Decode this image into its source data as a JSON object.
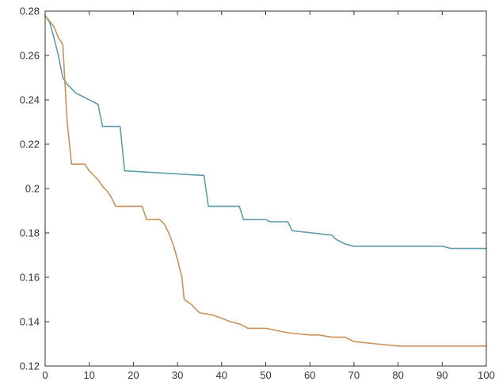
{
  "chart_data": {
    "type": "line",
    "title": "",
    "xlabel": "",
    "ylabel": "",
    "xlim": [
      0,
      100
    ],
    "ylim": [
      0.12,
      0.28
    ],
    "x_ticks": [
      0,
      10,
      20,
      30,
      40,
      50,
      60,
      70,
      80,
      90,
      100
    ],
    "y_ticks": [
      0.12,
      0.14,
      0.16,
      0.18,
      0.2,
      0.22,
      0.24,
      0.26,
      0.28
    ],
    "x_tick_labels": [
      "0",
      "10",
      "20",
      "30",
      "40",
      "50",
      "60",
      "70",
      "80",
      "90",
      "100"
    ],
    "y_tick_labels": [
      "0.12",
      "0.14",
      "0.16",
      "0.18",
      "0.2",
      "0.22",
      "0.24",
      "0.26",
      "0.28"
    ],
    "grid": false,
    "series": [
      {
        "color": "#5f9ea8",
        "x": [
          0,
          1,
          2,
          3,
          4,
          5,
          6,
          7,
          8,
          10,
          12,
          13,
          17,
          18,
          35,
          36,
          37,
          44,
          45,
          50,
          51,
          55,
          56,
          65,
          66,
          68,
          70,
          90,
          92,
          100
        ],
        "y": [
          0.278,
          0.275,
          0.268,
          0.26,
          0.25,
          0.247,
          0.245,
          0.243,
          0.242,
          0.24,
          0.238,
          0.228,
          0.228,
          0.208,
          0.206,
          0.206,
          0.192,
          0.192,
          0.186,
          0.186,
          0.185,
          0.185,
          0.181,
          0.179,
          0.177,
          0.175,
          0.174,
          0.174,
          0.173,
          0.173
        ]
      },
      {
        "color": "#c9925a",
        "x": [
          0,
          2,
          3,
          4,
          5,
          6,
          9,
          10,
          11,
          12,
          13,
          14,
          15,
          16,
          22,
          23,
          26,
          27,
          28,
          29,
          30,
          31,
          31.5,
          33,
          35,
          38,
          42,
          44,
          46,
          50,
          55,
          60,
          62,
          65,
          68,
          70,
          75,
          80,
          83,
          90,
          100
        ],
        "y": [
          0.278,
          0.273,
          0.268,
          0.265,
          0.23,
          0.211,
          0.211,
          0.208,
          0.206,
          0.204,
          0.201,
          0.199,
          0.196,
          0.192,
          0.192,
          0.186,
          0.186,
          0.184,
          0.18,
          0.175,
          0.168,
          0.16,
          0.15,
          0.148,
          0.144,
          0.143,
          0.14,
          0.139,
          0.137,
          0.137,
          0.135,
          0.134,
          0.134,
          0.133,
          0.133,
          0.131,
          0.13,
          0.129,
          0.129,
          0.129,
          0.129
        ]
      }
    ]
  }
}
